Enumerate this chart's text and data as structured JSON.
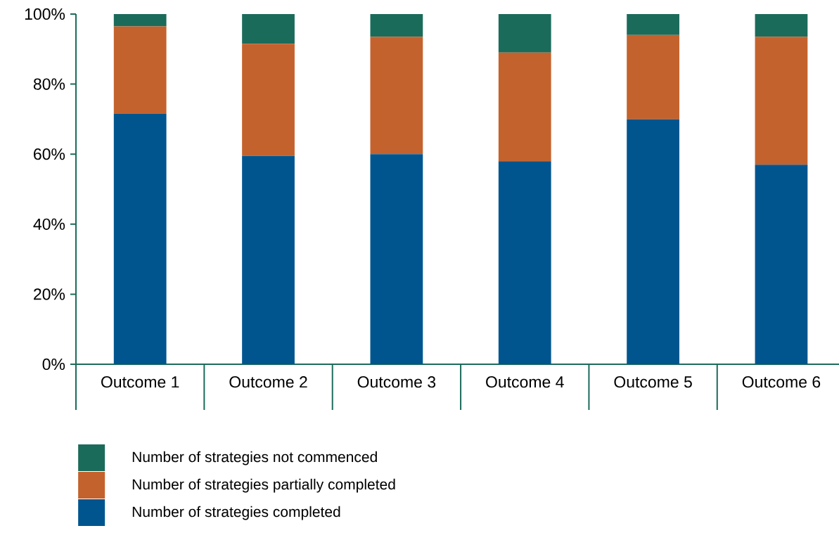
{
  "chart_data": {
    "type": "bar",
    "stacked": true,
    "categories": [
      "Outcome 1",
      "Outcome 2",
      "Outcome 3",
      "Outcome 4",
      "Outcome 5",
      "Outcome 6"
    ],
    "series": [
      {
        "name": "Number of strategies completed",
        "color": "#00558f",
        "values": [
          71.5,
          59.5,
          60,
          58,
          70,
          57
        ]
      },
      {
        "name": "Number of strategies partially completed",
        "color": "#c4622d",
        "values": [
          25,
          32,
          33.5,
          31,
          24,
          36.5
        ]
      },
      {
        "name": "Number of strategies not commenced",
        "color": "#1b6b5a",
        "values": [
          3.5,
          8.5,
          6.5,
          11,
          6,
          6.5
        ]
      }
    ],
    "ylim": [
      0,
      100
    ],
    "yticks": [
      {
        "value": 0,
        "label": "0%"
      },
      {
        "value": 20,
        "label": "20%"
      },
      {
        "value": 40,
        "label": "40%"
      },
      {
        "value": 60,
        "label": "60%"
      },
      {
        "value": 80,
        "label": "80%"
      },
      {
        "value": 100,
        "label": "100%"
      }
    ],
    "grid": false,
    "legend": "bottom"
  }
}
